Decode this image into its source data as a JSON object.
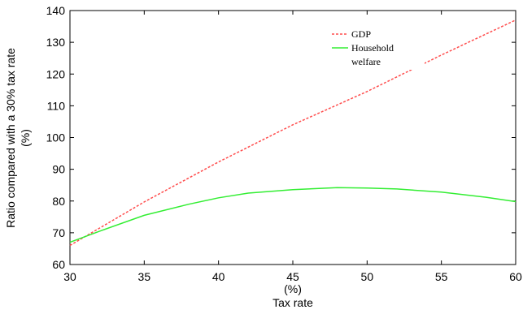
{
  "chart_data": {
    "type": "line",
    "xlabel_line1": "(%)",
    "xlabel_line2": "Tax rate",
    "ylabel_line1": "Ratio compared with a 30% tax rate",
    "ylabel_line2": "(%)",
    "xlim": [
      30,
      60
    ],
    "ylim": [
      60,
      140
    ],
    "xticks": [
      30,
      35,
      40,
      45,
      50,
      55,
      60
    ],
    "yticks": [
      60,
      70,
      80,
      90,
      100,
      110,
      120,
      130,
      140
    ],
    "grid": false,
    "legend_position": "top-right",
    "series": [
      {
        "name": "GDP",
        "color": "#ff4d4d",
        "style": "dashed",
        "x": [
          30,
          35,
          40,
          45,
          50,
          55,
          60
        ],
        "y": [
          66,
          79.7,
          92.3,
          104,
          114.5,
          126,
          137
        ]
      },
      {
        "name": "Household",
        "name_line2": "welfare",
        "color": "#33ee33",
        "style": "solid",
        "x": [
          30,
          32,
          35,
          38,
          40,
          42,
          45,
          48,
          50,
          52,
          55,
          58,
          60
        ],
        "y": [
          67,
          70.5,
          75.5,
          79,
          81,
          82.5,
          83.6,
          84.2,
          84.1,
          83.8,
          82.8,
          81.2,
          79.8
        ]
      }
    ]
  }
}
